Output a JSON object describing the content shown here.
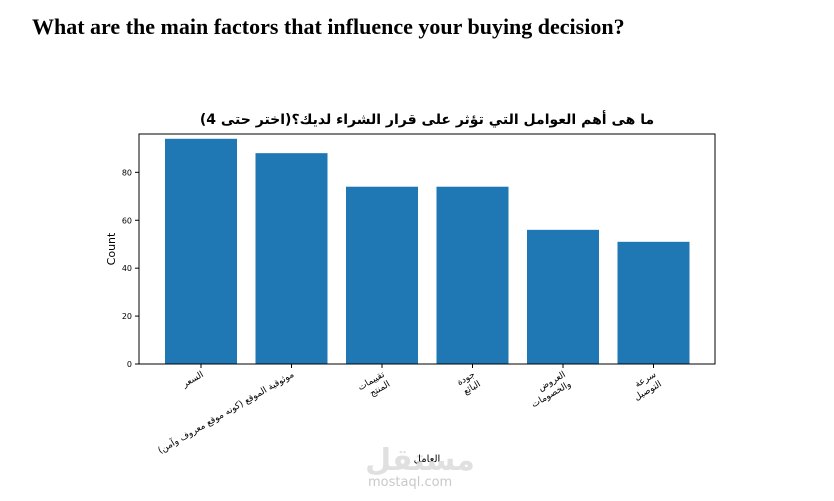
{
  "page": {
    "heading": "What are the main factors that influence your buying decision?"
  },
  "watermark": {
    "brand": "مستقل",
    "site": "mostaql.com"
  },
  "chart_data": {
    "type": "bar",
    "title": "ما هى أهم العوامل التي تؤثر على قرار الشراء لديك؟(اختر حتى 4)",
    "xlabel": "العامل",
    "ylabel": "Count",
    "ylim": [
      0,
      96
    ],
    "yticks": [
      0,
      20,
      40,
      60,
      80
    ],
    "categories": [
      "السعر",
      "موثوقية الموقع (كونه موقع معروف وآمن)",
      "تقييمات المنتج",
      "جودة البائع",
      "العروض والخصومات",
      "سرعة التوصيل"
    ],
    "category_lines": [
      [
        "السعر"
      ],
      [
        "موثوقية الموقع (كونه موقع معروف وآمن)"
      ],
      [
        "تقييمات",
        "المنتج"
      ],
      [
        "جودة",
        "البائع"
      ],
      [
        "العروض",
        "والخصومات"
      ],
      [
        "سرعة",
        "التوصيل"
      ]
    ],
    "values": [
      94,
      88,
      74,
      74,
      56,
      51
    ],
    "bar_color": "#1f77b4",
    "grid": false,
    "legend": "none"
  }
}
